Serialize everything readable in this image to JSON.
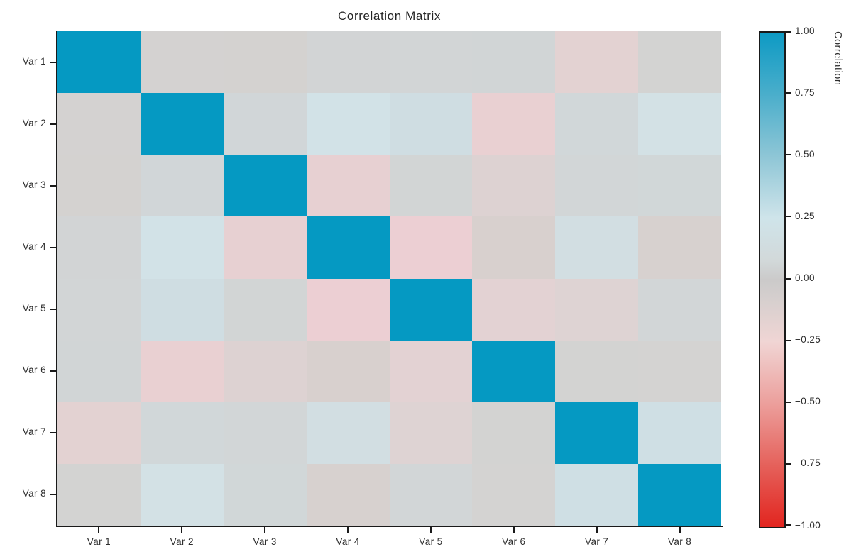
{
  "chart_data": {
    "type": "heatmap",
    "title": "Correlation Matrix",
    "x_labels": [
      "Var 1",
      "Var 2",
      "Var 3",
      "Var 4",
      "Var 5",
      "Var 6",
      "Var 7",
      "Var 8"
    ],
    "y_labels": [
      "Var 1",
      "Var 2",
      "Var 3",
      "Var 4",
      "Var 5",
      "Var 6",
      "Var 7",
      "Var 8"
    ],
    "matrix": [
      [
        1.0,
        -0.03,
        -0.04,
        0.06,
        0.05,
        0.06,
        -0.15,
        0.01
      ],
      [
        -0.03,
        1.0,
        0.09,
        0.24,
        0.18,
        -0.2,
        0.09,
        0.21
      ],
      [
        -0.04,
        0.09,
        1.0,
        -0.19,
        0.04,
        -0.1,
        0.07,
        0.08
      ],
      [
        0.06,
        0.24,
        -0.19,
        1.0,
        -0.26,
        -0.08,
        0.16,
        -0.08
      ],
      [
        0.05,
        0.18,
        0.04,
        -0.26,
        1.0,
        -0.13,
        -0.1,
        0.06
      ],
      [
        0.06,
        -0.2,
        -0.1,
        -0.08,
        -0.13,
        1.0,
        0.0,
        -0.02
      ],
      [
        -0.15,
        0.09,
        0.07,
        0.16,
        -0.1,
        0.0,
        1.0,
        0.21
      ],
      [
        0.01,
        0.21,
        0.08,
        -0.08,
        0.06,
        -0.02,
        0.21,
        1.0
      ]
    ],
    "cell_colors": [
      [
        "#0599c2",
        "#d4d2d1",
        "#d4d2d0",
        "#d2d4d5",
        "#d2d5d6",
        "#d1d5d6",
        "#e3d2d2",
        "#d3d3d2"
      ],
      [
        "#d4d2d1",
        "#0599c2",
        "#d1d6d8",
        "#d2e2e7",
        "#cfdde2",
        "#e9d0d2",
        "#d1d7d9",
        "#d3e1e5"
      ],
      [
        "#d4d2d0",
        "#d1d6d8",
        "#0599c2",
        "#e7d0d2",
        "#d2d5d5",
        "#ddd2d2",
        "#d2d6d7",
        "#d1d7d8"
      ],
      [
        "#d2d4d5",
        "#d2e2e7",
        "#e7d0d2",
        "#0599c2",
        "#eccfd3",
        "#d8d0ce",
        "#d2dee2",
        "#d7d1cf"
      ],
      [
        "#d2d5d6",
        "#cfdde2",
        "#d2d5d5",
        "#eccfd3",
        "#0599c2",
        "#e3d2d3",
        "#ded3d3",
        "#d2d6d7"
      ],
      [
        "#d1d5d6",
        "#e9d0d2",
        "#ddd2d2",
        "#d8d0ce",
        "#e3d2d3",
        "#0599c2",
        "#d3d3d2",
        "#d4d3d2"
      ],
      [
        "#e3d2d2",
        "#d1d7d9",
        "#d2d6d7",
        "#d2dee2",
        "#ded3d3",
        "#d3d3d2",
        "#0599c2",
        "#cfdfe4"
      ],
      [
        "#d3d3d2",
        "#d3e1e5",
        "#d1d7d8",
        "#d7d1cf",
        "#d2d6d7",
        "#d4d3d2",
        "#cfdfe4",
        "#0599c2"
      ]
    ],
    "axis_range": {
      "vmin": -1.0,
      "vmax": 1.0
    },
    "colorbar": {
      "label": "Correlation",
      "tick_labels": [
        "1.00",
        "0.75",
        "0.50",
        "0.25",
        "0.00",
        "−0.25",
        "−0.50",
        "−0.75",
        "−1.00"
      ],
      "tick_values": [
        1.0,
        0.75,
        0.5,
        0.25,
        0.0,
        -0.25,
        -0.5,
        -0.75,
        -1.0
      ],
      "gradient_stops": [
        {
          "pos": "0%",
          "color": "#0d9ac4"
        },
        {
          "pos": "12.5%",
          "color": "#4aaecb"
        },
        {
          "pos": "25%",
          "color": "#8ec6d6"
        },
        {
          "pos": "37.5%",
          "color": "#cfe4ea"
        },
        {
          "pos": "46%",
          "color": "#d2d9da"
        },
        {
          "pos": "50%",
          "color": "#cbcaca"
        },
        {
          "pos": "54%",
          "color": "#d6cfce"
        },
        {
          "pos": "62.5%",
          "color": "#f0d5d4"
        },
        {
          "pos": "75%",
          "color": "#ec9f9c"
        },
        {
          "pos": "87.5%",
          "color": "#e5615b"
        },
        {
          "pos": "100%",
          "color": "#e2251f"
        }
      ],
      "accent_positive": "#0599c2",
      "accent_negative": "#e2251f",
      "accent_zero": "#cbcaca"
    }
  }
}
